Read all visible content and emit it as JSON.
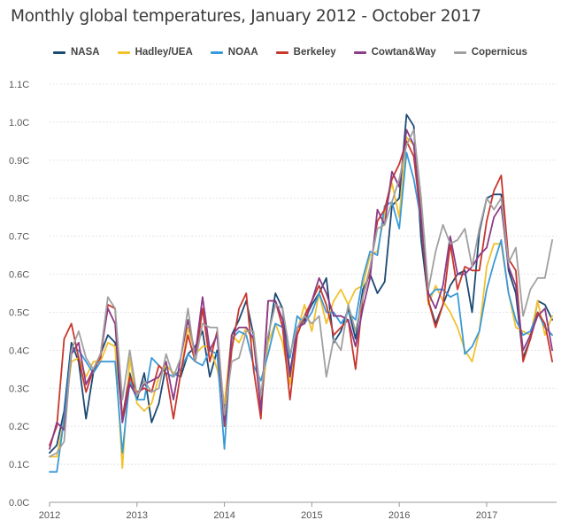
{
  "title": "Monthly global temperatures, January 2012 - October 2017",
  "colors": {
    "NASA": "#1b4a73",
    "Hadley/UEA": "#f2c12e",
    "NOAA": "#3a9ad9",
    "Berkeley": "#c8372d",
    "Cowtan&Way": "#8c3b86",
    "Copernicus": "#a0a0a0"
  },
  "chart_data": {
    "type": "line",
    "title": "Monthly global temperatures, January 2012 - October 2017",
    "xlabel": "",
    "ylabel": "",
    "xlim": [
      2012,
      2017.8
    ],
    "ylim": [
      0.0,
      1.1
    ],
    "x_ticks": [
      {
        "value": 2012,
        "label": "2012"
      },
      {
        "value": 2013,
        "label": "2013"
      },
      {
        "value": 2014,
        "label": "2014"
      },
      {
        "value": 2015,
        "label": "2015"
      },
      {
        "value": 2016,
        "label": "2016"
      },
      {
        "value": 2017,
        "label": "2017"
      }
    ],
    "y_ticks": [
      {
        "value": 0.0,
        "label": "0.0C"
      },
      {
        "value": 0.1,
        "label": "0.1C"
      },
      {
        "value": 0.2,
        "label": "0.2C"
      },
      {
        "value": 0.3,
        "label": "0.3C"
      },
      {
        "value": 0.4,
        "label": "0.4C"
      },
      {
        "value": 0.5,
        "label": "0.5C"
      },
      {
        "value": 0.6,
        "label": "0.6C"
      },
      {
        "value": 0.7,
        "label": "0.7C"
      },
      {
        "value": 0.8,
        "label": "0.8C"
      },
      {
        "value": 0.9,
        "label": "0.9C"
      },
      {
        "value": 1.0,
        "label": "1.0C"
      },
      {
        "value": 1.1,
        "label": "1.1C"
      }
    ],
    "grid": "horizontal",
    "legend_position": "top",
    "x_start": 2012.0,
    "x_step_months": 1,
    "series": [
      {
        "name": "NASA",
        "color": "#1b4a73",
        "values": [
          0.13,
          0.15,
          0.24,
          0.42,
          0.37,
          0.22,
          0.34,
          0.39,
          0.44,
          0.42,
          0.22,
          0.34,
          0.27,
          0.34,
          0.21,
          0.26,
          0.36,
          0.34,
          0.33,
          0.39,
          0.41,
          0.45,
          0.33,
          0.4,
          0.25,
          0.44,
          0.48,
          0.53,
          0.44,
          0.25,
          0.43,
          0.55,
          0.51,
          0.34,
          0.46,
          0.48,
          0.52,
          0.55,
          0.59,
          0.42,
          0.45,
          0.51,
          0.43,
          0.56,
          0.6,
          0.55,
          0.58,
          0.78,
          0.8,
          1.02,
          0.99,
          0.69,
          0.53,
          0.47,
          0.52,
          0.57,
          0.6,
          0.61,
          0.5,
          0.71,
          0.8,
          0.81,
          0.81,
          0.61,
          0.55,
          0.38,
          0.43,
          0.53,
          0.52,
          0.48
        ]
      },
      {
        "name": "Hadley/UEA",
        "color": "#f2c12e",
        "values": [
          0.12,
          0.12,
          0.22,
          0.37,
          0.38,
          0.33,
          0.37,
          0.37,
          0.42,
          0.41,
          0.09,
          0.38,
          0.26,
          0.24,
          0.26,
          0.33,
          0.36,
          0.34,
          0.34,
          0.46,
          0.39,
          0.41,
          0.41,
          0.35,
          0.26,
          0.44,
          0.42,
          0.46,
          0.42,
          0.26,
          0.42,
          0.47,
          0.42,
          0.31,
          0.45,
          0.52,
          0.45,
          0.55,
          0.47,
          0.53,
          0.56,
          0.52,
          0.56,
          0.57,
          0.65,
          0.66,
          0.76,
          0.84,
          0.75,
          0.96,
          0.94,
          0.77,
          0.52,
          0.57,
          0.53,
          0.5,
          0.46,
          0.4,
          0.37,
          0.45,
          0.62,
          0.68,
          0.68,
          0.55,
          0.46,
          0.45,
          0.44,
          0.53,
          0.44,
          0.49
        ]
      },
      {
        "name": "NOAA",
        "color": "#3a9ad9",
        "values": [
          0.08,
          0.08,
          0.22,
          0.4,
          0.4,
          0.37,
          0.34,
          0.37,
          0.37,
          0.37,
          0.13,
          0.32,
          0.27,
          0.27,
          0.38,
          0.36,
          0.34,
          0.33,
          0.35,
          0.39,
          0.37,
          0.36,
          0.4,
          0.39,
          0.14,
          0.43,
          0.45,
          0.44,
          0.36,
          0.32,
          0.39,
          0.47,
          0.46,
          0.38,
          0.49,
          0.47,
          0.5,
          0.55,
          0.5,
          0.5,
          0.47,
          0.5,
          0.48,
          0.59,
          0.66,
          0.65,
          0.78,
          0.79,
          0.72,
          0.92,
          0.85,
          0.74,
          0.54,
          0.56,
          0.56,
          0.54,
          0.55,
          0.39,
          0.41,
          0.45,
          0.56,
          0.63,
          0.69,
          0.55,
          0.48,
          0.44,
          0.45,
          0.5,
          0.46,
          0.44
        ]
      },
      {
        "name": "Berkeley",
        "color": "#c8372d",
        "values": [
          0.15,
          0.2,
          0.43,
          0.47,
          0.38,
          0.29,
          0.35,
          0.38,
          0.52,
          0.51,
          0.22,
          0.33,
          0.29,
          0.3,
          0.29,
          0.36,
          0.34,
          0.22,
          0.34,
          0.44,
          0.37,
          0.51,
          0.37,
          0.45,
          0.2,
          0.4,
          0.51,
          0.55,
          0.35,
          0.22,
          0.53,
          0.53,
          0.46,
          0.27,
          0.44,
          0.49,
          0.53,
          0.57,
          0.52,
          0.44,
          0.46,
          0.48,
          0.35,
          0.54,
          0.61,
          0.74,
          0.77,
          0.85,
          0.89,
          0.95,
          0.91,
          0.74,
          0.53,
          0.46,
          0.52,
          0.68,
          0.56,
          0.62,
          0.61,
          0.61,
          0.74,
          0.82,
          0.86,
          0.64,
          0.61,
          0.37,
          0.43,
          0.5,
          0.47,
          0.37
        ]
      },
      {
        "name": "Cowtan&Way",
        "color": "#8c3b86",
        "values": [
          0.14,
          0.21,
          0.19,
          0.39,
          0.42,
          0.31,
          0.35,
          0.39,
          0.51,
          0.47,
          0.21,
          0.31,
          0.28,
          0.31,
          0.32,
          0.33,
          0.37,
          0.27,
          0.38,
          0.48,
          0.39,
          0.54,
          0.4,
          0.44,
          0.21,
          0.44,
          0.46,
          0.46,
          0.43,
          0.24,
          0.53,
          0.53,
          0.48,
          0.33,
          0.46,
          0.47,
          0.53,
          0.59,
          0.55,
          0.49,
          0.49,
          0.48,
          0.41,
          0.51,
          0.59,
          0.77,
          0.73,
          0.87,
          0.83,
          0.98,
          0.94,
          0.75,
          0.55,
          0.51,
          0.57,
          0.7,
          0.6,
          0.6,
          0.62,
          0.65,
          0.67,
          0.75,
          0.78,
          0.62,
          0.57,
          0.4,
          0.44,
          0.49,
          0.51,
          0.4
        ]
      },
      {
        "name": "Copernicus",
        "color": "#a0a0a0",
        "values": [
          0.12,
          0.13,
          0.16,
          0.4,
          0.45,
          0.38,
          0.35,
          0.39,
          0.54,
          0.51,
          0.27,
          0.4,
          0.28,
          0.32,
          0.29,
          0.3,
          0.39,
          0.33,
          0.38,
          0.51,
          0.37,
          0.47,
          0.46,
          0.46,
          0.23,
          0.37,
          0.38,
          0.45,
          0.45,
          0.28,
          0.44,
          0.52,
          0.51,
          0.39,
          0.46,
          0.49,
          0.47,
          0.49,
          0.33,
          0.43,
          0.4,
          0.52,
          0.45,
          0.54,
          0.62,
          0.72,
          0.73,
          0.79,
          0.85,
          0.94,
          0.98,
          0.8,
          0.56,
          0.66,
          0.73,
          0.68,
          0.69,
          0.72,
          0.62,
          0.72,
          0.8,
          0.77,
          0.8,
          0.63,
          0.67,
          0.49,
          0.56,
          0.59,
          0.59,
          0.69
        ]
      }
    ]
  }
}
